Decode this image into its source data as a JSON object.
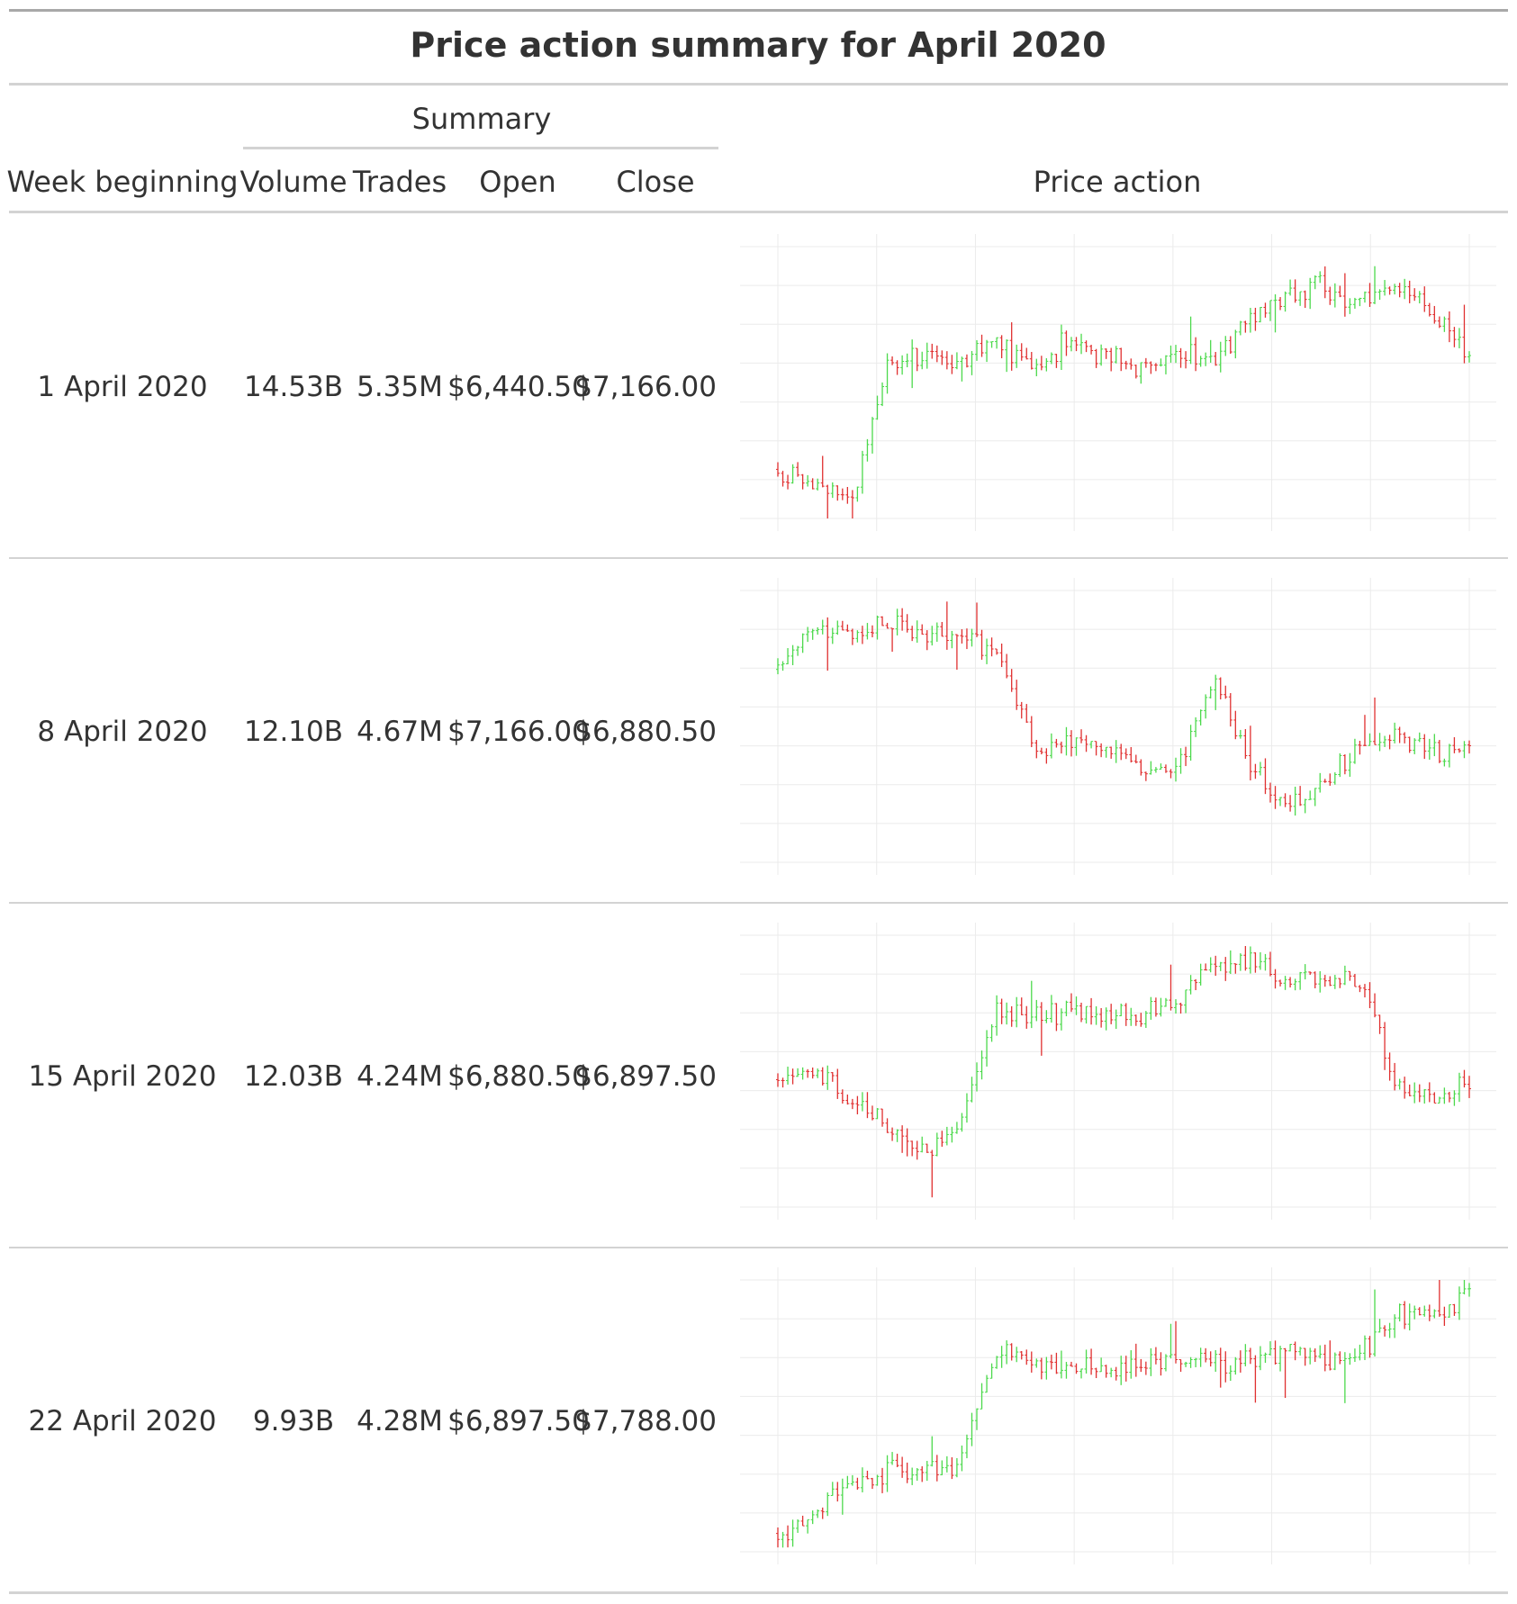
{
  "title": "Price action summary for April 2020",
  "headers": {
    "spanner": "Summary",
    "week_beginning": "Week beginning",
    "volume": "Volume",
    "trades": "Trades",
    "open": "Open",
    "close": "Close",
    "price_action": "Price action"
  },
  "colors": {
    "up": "#4cd94c",
    "down": "#e03030",
    "rule": "#d3d3d3",
    "grid": "#ebebeb"
  },
  "rows": [
    {
      "week": "1 April 2020",
      "volume": "14.53B",
      "trades": "5.35M",
      "open": "$6,440.50",
      "close": "$7,166.00"
    },
    {
      "week": "8 April 2020",
      "volume": "12.10B",
      "trades": "4.67M",
      "open": "$7,166.00",
      "close": "$6,880.50"
    },
    {
      "week": "15 April 2020",
      "volume": "12.03B",
      "trades": "4.24M",
      "open": "$6,880.50",
      "close": "$6,897.50"
    },
    {
      "week": "22 April 2020",
      "volume": "9.93B",
      "trades": "4.28M",
      "open": "$6,897.50",
      "close": "$7,788.00"
    }
  ],
  "chart_data": [
    {
      "type": "ohlc",
      "week": "1 April 2020",
      "open": 6440.5,
      "close": 7166.0,
      "anchors": [
        0.17,
        0.12,
        0.06,
        0.55,
        0.61,
        0.58,
        0.66,
        0.56,
        0.66,
        0.58,
        0.56,
        0.62,
        0.57,
        0.74,
        0.82,
        0.85,
        0.8,
        0.87,
        0.77,
        0.61
      ]
    },
    {
      "type": "ohlc",
      "week": "8 April 2020",
      "open": 7166.0,
      "close": 6880.5,
      "anchors": [
        0.73,
        0.87,
        0.85,
        0.88,
        0.83,
        0.84,
        0.77,
        0.43,
        0.42,
        0.44,
        0.33,
        0.36,
        0.66,
        0.37,
        0.2,
        0.29,
        0.43,
        0.45,
        0.42,
        0.39
      ]
    },
    {
      "type": "ohlc",
      "week": "15 April 2020",
      "open": 6880.5,
      "close": 6897.5,
      "anchors": [
        0.47,
        0.5,
        0.38,
        0.31,
        0.19,
        0.33,
        0.72,
        0.69,
        0.72,
        0.7,
        0.71,
        0.76,
        0.9,
        0.91,
        0.82,
        0.84,
        0.85,
        0.43,
        0.41,
        0.47
      ]
    },
    {
      "type": "ohlc",
      "week": "22 April 2020",
      "open": 6897.5,
      "close": 7788.0,
      "anchors": [
        0.05,
        0.13,
        0.24,
        0.3,
        0.3,
        0.32,
        0.75,
        0.7,
        0.68,
        0.66,
        0.69,
        0.72,
        0.7,
        0.7,
        0.74,
        0.71,
        0.72,
        0.87,
        0.86,
        0.97
      ]
    }
  ]
}
